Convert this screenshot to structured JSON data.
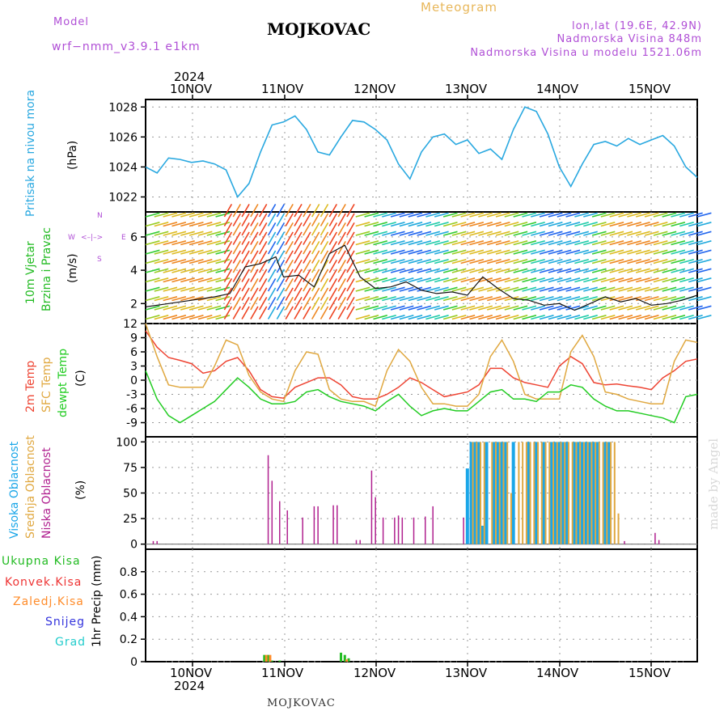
{
  "header": {
    "model_label": "Model",
    "model_name": "wrf−nmm_v3.9.1  e1km",
    "station": "MOJKOVAC",
    "product": "Meteogram",
    "lonlat": "lon,lat (19.6E, 42.9N)",
    "elevation": "Nadmorska Visina 848m",
    "model_elevation": "Nadmorska Visina u modelu 1521.06m"
  },
  "footer": {
    "station": "MOJKOVAC"
  },
  "watermark": "made by Angel",
  "colors": {
    "pressure": "#29a8e0",
    "wind_label": "#2fc42f",
    "temp2m": "#ee4433",
    "sfc_temp": "#e0a840",
    "dewpoint": "#22cc22",
    "high_cloud": "#1aa6e8",
    "mid_cloud": "#e0a840",
    "low_cloud": "#b0208f",
    "purple": "#b04fd6",
    "total_precip": "#22bb22",
    "convective": "#ee3333",
    "freezing": "#ff8c2a",
    "snow": "#3333dd",
    "hail": "#22cccc"
  },
  "chart_data": [
    {
      "type": "line",
      "id": "pressure",
      "labels": [
        "Pritisak na nivou mora",
        "(hPa)"
      ],
      "x_top_year": "2024",
      "x_ticks": [
        "10NOV",
        "11NOV",
        "12NOV",
        "13NOV",
        "14NOV",
        "15NOV"
      ],
      "ylim": [
        1021,
        1028.5
      ],
      "yticks": [
        1022,
        1024,
        1026,
        1028
      ],
      "grid": true,
      "series": [
        {
          "x": [
            0,
            3,
            6,
            9,
            12,
            15,
            18,
            21,
            24,
            27,
            30,
            33,
            36,
            39,
            42,
            45,
            48,
            51,
            54,
            57,
            60,
            63,
            66,
            69,
            72,
            75,
            78,
            81,
            84,
            87,
            90,
            93,
            96,
            99,
            102,
            105,
            108,
            111,
            114,
            117,
            120,
            123,
            126,
            129,
            132,
            135,
            138,
            141,
            144
          ],
          "values": [
            1024.0,
            1023.6,
            1024.6,
            1024.5,
            1024.3,
            1024.4,
            1024.2,
            1023.8,
            1022.0,
            1022.9,
            1025.0,
            1026.8,
            1027.0,
            1027.4,
            1026.5,
            1025.0,
            1024.8,
            1026.0,
            1027.1,
            1027.0,
            1026.5,
            1025.8,
            1024.2,
            1023.2,
            1025.0,
            1026.0,
            1026.2,
            1025.5,
            1025.8,
            1024.9,
            1025.2,
            1024.5,
            1026.5,
            1028.0,
            1027.7,
            1026.2,
            1024.0,
            1022.7,
            1024.2,
            1025.5,
            1025.7,
            1025.4,
            1025.9,
            1025.5,
            1025.8,
            1026.1,
            1025.4,
            1024.0,
            1023.3
          ]
        }
      ]
    },
    {
      "type": "line",
      "id": "wind",
      "labels": [
        "10m Vjetar",
        "Brzina i Pravac",
        "(m/s)"
      ],
      "direction_legend": [
        "W",
        "<–|–>",
        "E",
        "N",
        "S"
      ],
      "ylim": [
        0.8,
        7.5
      ],
      "yticks": [
        2,
        4,
        6
      ],
      "grid": true,
      "series": [
        {
          "name": "speed",
          "x": [
            0,
            6,
            12,
            18,
            22,
            26,
            30,
            34,
            36,
            40,
            44,
            48,
            52,
            56,
            60,
            64,
            68,
            72,
            76,
            80,
            84,
            88,
            92,
            96,
            100,
            104,
            108,
            112,
            116,
            120,
            124,
            128,
            132,
            136,
            140,
            144
          ],
          "values": [
            1.8,
            2.0,
            2.2,
            2.4,
            2.6,
            4.2,
            4.4,
            4.8,
            3.6,
            3.7,
            3.0,
            5.0,
            5.5,
            3.6,
            2.9,
            3.0,
            3.3,
            2.8,
            2.6,
            2.7,
            2.5,
            3.6,
            2.9,
            2.3,
            2.2,
            1.9,
            2.0,
            1.6,
            2.0,
            2.4,
            2.1,
            2.3,
            1.9,
            2.0,
            2.2,
            2.5
          ]
        }
      ]
    },
    {
      "type": "line",
      "id": "temperature",
      "labels": [
        "2m Temp",
        "SFC Temp",
        "dewpt Temp",
        "(C)"
      ],
      "ylim": [
        -12,
        12
      ],
      "yticks": [
        -9,
        -6,
        -3,
        0,
        3,
        6,
        9,
        12
      ],
      "grid": true,
      "x": [
        0,
        3,
        6,
        9,
        12,
        15,
        18,
        21,
        24,
        27,
        30,
        33,
        36,
        39,
        42,
        45,
        48,
        51,
        54,
        57,
        60,
        63,
        66,
        69,
        72,
        75,
        78,
        81,
        84,
        87,
        90,
        93,
        96,
        99,
        102,
        105,
        108,
        111,
        114,
        117,
        120,
        123,
        126,
        129,
        132,
        135,
        138,
        141,
        144
      ],
      "series": [
        {
          "name": "2m Temp",
          "values": [
            10.5,
            7.0,
            4.8,
            4.2,
            3.5,
            1.5,
            2.0,
            4.0,
            4.8,
            2.0,
            -2.0,
            -3.5,
            -3.8,
            -1.5,
            -0.5,
            0.5,
            0.5,
            -1.0,
            -3.5,
            -4.0,
            -4.0,
            -3.0,
            -1.5,
            0.5,
            -0.5,
            -2.0,
            -3.5,
            -3.0,
            -2.5,
            -1.0,
            2.5,
            2.5,
            0.5,
            -0.5,
            -1.0,
            -1.5,
            3.0,
            5.0,
            3.5,
            -0.5,
            -1.0,
            -0.8,
            -1.2,
            -1.5,
            -2.0,
            0.5,
            2.0,
            4.0,
            4.5
          ]
        },
        {
          "name": "SFC Temp",
          "values": [
            12.0,
            5.0,
            -1.0,
            -1.5,
            -1.5,
            -1.5,
            3.0,
            8.5,
            7.5,
            1.0,
            -2.5,
            -4.0,
            -4.5,
            2.0,
            6.0,
            5.5,
            -2.0,
            -4.0,
            -4.5,
            -4.5,
            -5.5,
            2.0,
            6.5,
            4.0,
            -1.5,
            -5.0,
            -5.0,
            -5.5,
            -5.5,
            -3.0,
            5.0,
            8.5,
            4.0,
            -3.0,
            -4.0,
            -4.0,
            -4.0,
            6.0,
            9.5,
            5.0,
            -2.5,
            -3.0,
            -4.0,
            -4.5,
            -5.0,
            -5.0,
            4.0,
            8.5,
            8.0
          ]
        },
        {
          "name": "dewpt Temp",
          "values": [
            2.0,
            -4.0,
            -7.5,
            -9.0,
            -7.5,
            -6.0,
            -4.5,
            -2.0,
            0.5,
            -1.5,
            -4.0,
            -5.0,
            -5.0,
            -4.5,
            -2.5,
            -2.0,
            -3.5,
            -4.5,
            -5.0,
            -5.5,
            -6.5,
            -4.5,
            -3.0,
            -5.5,
            -7.5,
            -6.5,
            -6.0,
            -6.5,
            -6.5,
            -4.5,
            -2.5,
            -2.0,
            -4.0,
            -4.0,
            -4.5,
            -2.5,
            -2.5,
            -1.0,
            -1.5,
            -4.0,
            -5.5,
            -6.5,
            -6.5,
            -7.0,
            -7.5,
            -8.0,
            -9.0,
            -3.5,
            -3.0
          ]
        }
      ]
    },
    {
      "type": "bar",
      "id": "clouds",
      "labels": [
        "Visoka Oblacnost",
        "Srednja Oblacnost",
        "Niska Oblacnost",
        "(%)"
      ],
      "ylim": [
        -5,
        105
      ],
      "yticks": [
        0,
        25,
        50,
        75,
        100
      ],
      "grid": true,
      "series": [
        {
          "name": "Niska Oblacnost",
          "x": [
            2,
            3,
            32,
            33,
            35,
            37,
            41,
            44,
            45,
            49,
            50,
            55,
            56,
            59,
            60,
            62,
            65,
            66,
            67,
            70,
            73,
            75,
            83,
            84,
            85,
            125,
            133,
            134
          ],
          "values": [
            3,
            3,
            87,
            62,
            42,
            33,
            26,
            37,
            37,
            38,
            38,
            4,
            4,
            72,
            46,
            26,
            26,
            28,
            26,
            26,
            27,
            37,
            26,
            3,
            3,
            3,
            11,
            4
          ]
        },
        {
          "name": "Visoka Oblacnost",
          "x": [
            84,
            85,
            86,
            87,
            88,
            89,
            91,
            92,
            93,
            94,
            96,
            100,
            102,
            104,
            106,
            107,
            108,
            109,
            110,
            112,
            113,
            114,
            115,
            116,
            117,
            118,
            120,
            121
          ],
          "values": [
            74,
            100,
            100,
            100,
            18,
            100,
            100,
            100,
            100,
            100,
            100,
            100,
            100,
            100,
            100,
            100,
            100,
            100,
            100,
            100,
            100,
            100,
            100,
            100,
            100,
            100,
            100,
            100
          ]
        },
        {
          "name": "Srednja Oblacnost",
          "x": [
            85,
            86,
            87,
            88,
            90,
            91,
            92,
            93,
            94,
            95,
            97,
            98,
            99,
            100,
            101,
            102,
            103,
            104,
            105,
            106,
            107,
            108,
            109,
            110,
            111,
            112,
            113,
            114,
            115,
            116,
            117,
            118,
            119,
            120,
            121,
            122,
            123
          ],
          "values": [
            100,
            100,
            100,
            100,
            100,
            100,
            100,
            100,
            100,
            50,
            100,
            100,
            100,
            100,
            100,
            100,
            100,
            100,
            100,
            100,
            100,
            100,
            100,
            100,
            100,
            100,
            100,
            100,
            100,
            100,
            100,
            100,
            100,
            100,
            100,
            100,
            30
          ]
        }
      ]
    },
    {
      "type": "bar",
      "id": "precip",
      "labels": [
        "Ukupna  Kisa",
        "Konvek.Kisa",
        "Zaledj.Kisa",
        "Snijeg",
        "Grad",
        "1hr Precip (mm)"
      ],
      "ylim": [
        0,
        1.0
      ],
      "yticks": [
        0,
        0.2,
        0.4,
        0.6,
        0.8
      ],
      "grid": true,
      "x_ticks_bottom": [
        "10NOV",
        "11NOV",
        "12NOV",
        "13NOV",
        "14NOV",
        "15NOV"
      ],
      "x_bottom_year": "2024",
      "series": [
        {
          "name": "Ukupna  Kisa",
          "x": [
            31,
            32,
            33,
            35,
            51,
            52,
            53
          ],
          "values": [
            0.06,
            0.06,
            0.01,
            0.01,
            0.08,
            0.06,
            0.03
          ]
        },
        {
          "name": "Zaledj.Kisa",
          "x": [
            31.5,
            32.5,
            52.5
          ],
          "values": [
            0.06,
            0.06,
            0.02
          ]
        }
      ]
    }
  ]
}
